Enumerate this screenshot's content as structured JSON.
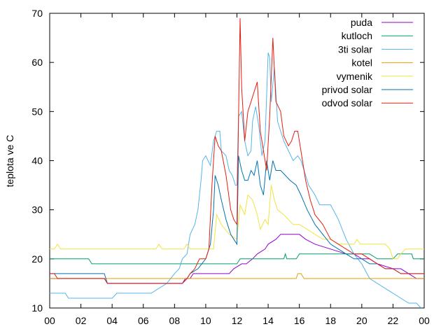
{
  "chart_data": {
    "type": "line",
    "ylabel": "teplota ve C",
    "xlim": [
      0,
      24
    ],
    "ylim": [
      10,
      70
    ],
    "x_ticks": [
      "00",
      "02",
      "04",
      "06",
      "08",
      "10",
      "12",
      "14",
      "16",
      "18",
      "20",
      "22",
      "00"
    ],
    "y_ticks": [
      10,
      20,
      30,
      40,
      50,
      60,
      70
    ],
    "grid": false,
    "legend_position": "top-right",
    "series": [
      {
        "name": "puda",
        "color": "#9400d3",
        "points": [
          [
            0,
            16
          ],
          [
            3.5,
            16
          ],
          [
            3.7,
            15
          ],
          [
            8.5,
            15
          ],
          [
            8.7,
            16
          ],
          [
            9,
            16
          ],
          [
            9.2,
            17
          ],
          [
            10,
            17
          ],
          [
            10.2,
            17
          ],
          [
            11.5,
            17
          ],
          [
            11.8,
            18
          ],
          [
            12.3,
            19
          ],
          [
            12.6,
            19
          ],
          [
            13,
            20
          ],
          [
            13.3,
            21
          ],
          [
            13.8,
            22
          ],
          [
            14,
            23
          ],
          [
            14.5,
            24
          ],
          [
            14.8,
            25
          ],
          [
            16,
            25
          ],
          [
            16.4,
            24
          ],
          [
            17,
            23
          ],
          [
            18,
            22
          ],
          [
            19,
            21
          ],
          [
            19.5,
            21
          ],
          [
            20,
            20
          ],
          [
            20.5,
            20
          ],
          [
            21,
            19
          ],
          [
            22,
            18
          ],
          [
            22.5,
            18
          ],
          [
            23,
            17
          ],
          [
            23.5,
            16
          ],
          [
            24,
            16
          ]
        ]
      },
      {
        "name": "kutloch",
        "color": "#009e73",
        "points": [
          [
            0,
            20
          ],
          [
            2.5,
            20
          ],
          [
            2.7,
            19
          ],
          [
            11,
            19
          ],
          [
            11.2,
            19
          ],
          [
            11.8,
            19
          ],
          [
            12,
            19
          ],
          [
            12.2,
            20
          ],
          [
            15,
            20
          ],
          [
            15.1,
            21
          ],
          [
            15.2,
            20
          ],
          [
            15.8,
            20
          ],
          [
            16,
            21
          ],
          [
            20,
            21
          ],
          [
            20.5,
            21
          ],
          [
            21,
            20
          ],
          [
            21.5,
            20
          ],
          [
            22,
            20
          ],
          [
            22.3,
            21
          ],
          [
            23.2,
            21
          ],
          [
            23.3,
            20
          ],
          [
            24,
            20
          ]
        ]
      },
      {
        "name": "3ti solar",
        "color": "#56b4e9",
        "points": [
          [
            0,
            13
          ],
          [
            1,
            13
          ],
          [
            1.2,
            12
          ],
          [
            4,
            12
          ],
          [
            4.3,
            13
          ],
          [
            6.5,
            13
          ],
          [
            7,
            14
          ],
          [
            7.5,
            15
          ],
          [
            8,
            17
          ],
          [
            8.3,
            18
          ],
          [
            8.5,
            20
          ],
          [
            8.8,
            21
          ],
          [
            9,
            25
          ],
          [
            9.3,
            27
          ],
          [
            9.5,
            30
          ],
          [
            9.7,
            36
          ],
          [
            9.8,
            40
          ],
          [
            10,
            41
          ],
          [
            10.3,
            39
          ],
          [
            10.5,
            44
          ],
          [
            10.7,
            46
          ],
          [
            10.9,
            46
          ],
          [
            11,
            42
          ],
          [
            11.3,
            41
          ],
          [
            11.5,
            38
          ],
          [
            11.7,
            37
          ],
          [
            11.9,
            35
          ],
          [
            12,
            35
          ],
          [
            12.1,
            49
          ],
          [
            12.3,
            50
          ],
          [
            12.5,
            44
          ],
          [
            12.7,
            41
          ],
          [
            12.9,
            42
          ],
          [
            13,
            48
          ],
          [
            13.2,
            51
          ],
          [
            13.4,
            47
          ],
          [
            13.6,
            41
          ],
          [
            13.8,
            44
          ],
          [
            14,
            62
          ],
          [
            14.1,
            61
          ],
          [
            14.2,
            52
          ],
          [
            14.4,
            59
          ],
          [
            14.6,
            48
          ],
          [
            14.8,
            46
          ],
          [
            15,
            44
          ],
          [
            15.3,
            42
          ],
          [
            15.6,
            40
          ],
          [
            15.9,
            41
          ],
          [
            16.1,
            40
          ],
          [
            16.3,
            38
          ],
          [
            16.6,
            35
          ],
          [
            17,
            33
          ],
          [
            17.3,
            31
          ],
          [
            18,
            31
          ],
          [
            18.5,
            28
          ],
          [
            19,
            24
          ],
          [
            19.5,
            21
          ],
          [
            20,
            19
          ],
          [
            20.5,
            16
          ],
          [
            21,
            15
          ],
          [
            21.5,
            14
          ],
          [
            22,
            13
          ],
          [
            22.5,
            12
          ],
          [
            23,
            11
          ],
          [
            23.5,
            11
          ],
          [
            23.8,
            10
          ]
        ]
      },
      {
        "name": "kotel",
        "color": "#e69f00",
        "points": [
          [
            0,
            16
          ],
          [
            15.8,
            16
          ],
          [
            15.9,
            17
          ],
          [
            16.1,
            17
          ],
          [
            16.3,
            16
          ],
          [
            24,
            16
          ]
        ]
      },
      {
        "name": "vymenik",
        "color": "#f0e442",
        "points": [
          [
            0,
            22
          ],
          [
            0.3,
            22
          ],
          [
            0.5,
            23
          ],
          [
            0.7,
            22
          ],
          [
            6.8,
            22
          ],
          [
            7,
            23
          ],
          [
            7.2,
            22
          ],
          [
            8.6,
            22
          ],
          [
            8.8,
            23
          ],
          [
            9,
            22
          ],
          [
            10.5,
            22
          ],
          [
            10.7,
            29
          ],
          [
            11,
            27
          ],
          [
            11.5,
            25
          ],
          [
            12,
            24
          ],
          [
            12.2,
            31
          ],
          [
            12.5,
            29
          ],
          [
            12.7,
            33
          ],
          [
            13,
            32
          ],
          [
            13.3,
            29
          ],
          [
            13.5,
            26
          ],
          [
            13.8,
            28
          ],
          [
            14,
            27
          ],
          [
            14.2,
            35
          ],
          [
            14.4,
            32
          ],
          [
            14.6,
            30
          ],
          [
            15,
            29
          ],
          [
            15.3,
            28
          ],
          [
            15.6,
            27
          ],
          [
            16,
            27
          ],
          [
            16.5,
            26
          ],
          [
            17,
            25
          ],
          [
            17.5,
            24
          ],
          [
            18,
            24
          ],
          [
            18.5,
            23
          ],
          [
            19,
            23
          ],
          [
            19.5,
            23
          ],
          [
            19.7,
            24
          ],
          [
            19.9,
            23
          ],
          [
            21,
            23
          ],
          [
            21.5,
            23
          ],
          [
            21.8,
            22
          ],
          [
            22,
            20
          ],
          [
            22.3,
            20
          ],
          [
            22.5,
            21
          ],
          [
            22.8,
            22
          ],
          [
            24,
            22
          ]
        ]
      },
      {
        "name": "privod solar",
        "color": "#0072b2",
        "points": [
          [
            0,
            17
          ],
          [
            3.5,
            17
          ],
          [
            3.7,
            15
          ],
          [
            8.5,
            15
          ],
          [
            8.8,
            16
          ],
          [
            9,
            17
          ],
          [
            9.5,
            18
          ],
          [
            10,
            20
          ],
          [
            10.3,
            23
          ],
          [
            10.5,
            30
          ],
          [
            10.6,
            37
          ],
          [
            10.8,
            35
          ],
          [
            11,
            32
          ],
          [
            11.3,
            28
          ],
          [
            11.6,
            25
          ],
          [
            11.8,
            24
          ],
          [
            12,
            23
          ],
          [
            12.1,
            41
          ],
          [
            12.3,
            38
          ],
          [
            12.5,
            36
          ],
          [
            12.7,
            36
          ],
          [
            12.9,
            38
          ],
          [
            13.1,
            37
          ],
          [
            13.3,
            40
          ],
          [
            13.5,
            35
          ],
          [
            13.7,
            33
          ],
          [
            13.9,
            40
          ],
          [
            14.1,
            36
          ],
          [
            14.3,
            40
          ],
          [
            14.5,
            38
          ],
          [
            14.8,
            38
          ],
          [
            15.1,
            37
          ],
          [
            15.4,
            36
          ],
          [
            15.8,
            35
          ],
          [
            16.1,
            33
          ],
          [
            16.5,
            30
          ],
          [
            17,
            27
          ],
          [
            17.5,
            25
          ],
          [
            18,
            23
          ],
          [
            18.5,
            22
          ],
          [
            19,
            21
          ],
          [
            19.5,
            20
          ],
          [
            20,
            20
          ],
          [
            20.5,
            19
          ],
          [
            21,
            19
          ],
          [
            21.5,
            18
          ],
          [
            22,
            18
          ],
          [
            22.5,
            17
          ],
          [
            23,
            17
          ],
          [
            23.5,
            17
          ],
          [
            24,
            17
          ]
        ]
      },
      {
        "name": "odvod solar",
        "color": "#e51e10",
        "points": [
          [
            0,
            17
          ],
          [
            0.3,
            17
          ],
          [
            0.5,
            16
          ],
          [
            3.5,
            16
          ],
          [
            3.7,
            15
          ],
          [
            8.5,
            15
          ],
          [
            8.8,
            16
          ],
          [
            9,
            17
          ],
          [
            9.3,
            18
          ],
          [
            9.6,
            20
          ],
          [
            10,
            20
          ],
          [
            10.2,
            22
          ],
          [
            10.4,
            35
          ],
          [
            10.6,
            45
          ],
          [
            10.8,
            43
          ],
          [
            11,
            42
          ],
          [
            11.3,
            37
          ],
          [
            11.6,
            30
          ],
          [
            11.8,
            28
          ],
          [
            12,
            27
          ],
          [
            12.1,
            48
          ],
          [
            12.2,
            69
          ],
          [
            12.3,
            55
          ],
          [
            12.5,
            44
          ],
          [
            12.7,
            50
          ],
          [
            12.9,
            52
          ],
          [
            13.1,
            54
          ],
          [
            13.3,
            56
          ],
          [
            13.5,
            46
          ],
          [
            13.7,
            42
          ],
          [
            13.9,
            38
          ],
          [
            14.1,
            49
          ],
          [
            14.3,
            65
          ],
          [
            14.5,
            52
          ],
          [
            14.8,
            50
          ],
          [
            15,
            45
          ],
          [
            15.3,
            43
          ],
          [
            15.5,
            44
          ],
          [
            15.7,
            46
          ],
          [
            15.9,
            46
          ],
          [
            16.1,
            42
          ],
          [
            16.4,
            36
          ],
          [
            16.7,
            32
          ],
          [
            17,
            29
          ],
          [
            17.5,
            27
          ],
          [
            18,
            24
          ],
          [
            18.5,
            23
          ],
          [
            19,
            22
          ],
          [
            19.5,
            21
          ],
          [
            20,
            21
          ],
          [
            20.5,
            20
          ],
          [
            21,
            19
          ],
          [
            21.5,
            18
          ],
          [
            22,
            18
          ],
          [
            22.5,
            17
          ],
          [
            23,
            17
          ],
          [
            24,
            17
          ]
        ]
      }
    ]
  }
}
